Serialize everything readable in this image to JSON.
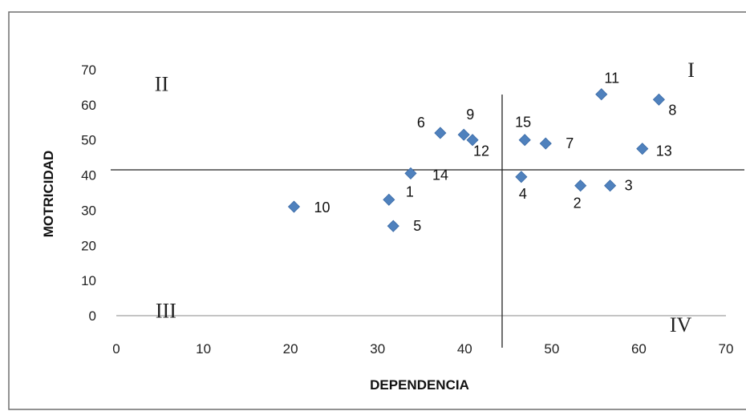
{
  "chart_data": {
    "type": "scatter",
    "title": "",
    "xlabel": "DEPENDENCIA",
    "ylabel": "MOTRICIDAD",
    "xlim": [
      0,
      70
    ],
    "ylim": [
      0,
      70
    ],
    "xticks": [
      "0",
      "10",
      "20",
      "30",
      "40",
      "50",
      "60",
      "70"
    ],
    "yticks": [
      "0",
      "10",
      "20",
      "30",
      "40",
      "50",
      "60",
      "70"
    ],
    "grid": false,
    "marker_color": "#4f81bd",
    "points": [
      {
        "label": "1",
        "x": 31.3,
        "y": 33
      },
      {
        "label": "2",
        "x": 53.3,
        "y": 37
      },
      {
        "label": "3",
        "x": 56.7,
        "y": 37
      },
      {
        "label": "4",
        "x": 46.5,
        "y": 39.5
      },
      {
        "label": "5",
        "x": 31.8,
        "y": 25.5
      },
      {
        "label": "6",
        "x": 37.2,
        "y": 52
      },
      {
        "label": "7",
        "x": 49.3,
        "y": 49
      },
      {
        "label": "8",
        "x": 62.3,
        "y": 61.5
      },
      {
        "label": "9",
        "x": 39.9,
        "y": 51.5
      },
      {
        "label": "10",
        "x": 20.4,
        "y": 31
      },
      {
        "label": "11",
        "x": 55.7,
        "y": 63
      },
      {
        "label": "12",
        "x": 40.9,
        "y": 50
      },
      {
        "label": "13",
        "x": 60.4,
        "y": 47.5
      },
      {
        "label": "14",
        "x": 33.8,
        "y": 40.5
      },
      {
        "label": "15",
        "x": 46.9,
        "y": 50
      }
    ],
    "quadrant_lines": {
      "x": 44.3,
      "y": 41.5
    },
    "quadrants": [
      {
        "label": "I",
        "x": 66,
        "y": 70
      },
      {
        "label": "II",
        "x": 5.2,
        "y": 66
      },
      {
        "label": "III",
        "x": 5.7,
        "y": 1.5
      },
      {
        "label": "IV",
        "x": 64.8,
        "y": -2.5
      }
    ]
  }
}
